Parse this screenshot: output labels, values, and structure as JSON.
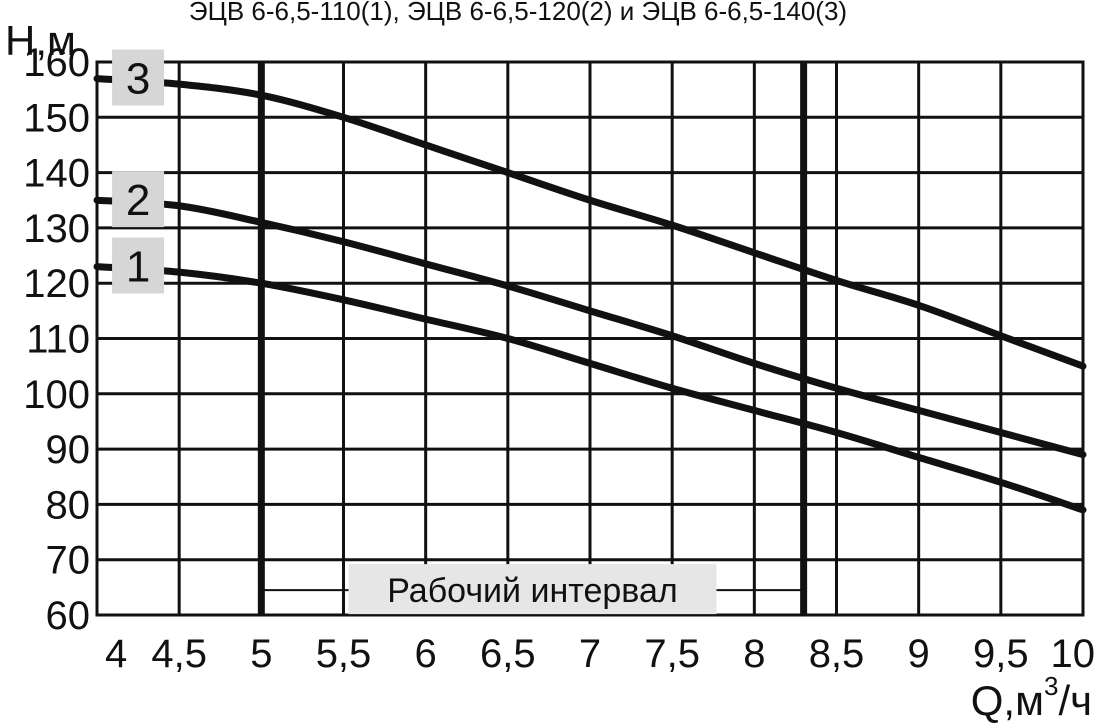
{
  "chart_data": {
    "type": "line",
    "title": "ЭЦВ 6-6,5-110(1), ЭЦВ 6-6,5-120(2) и ЭЦВ 6-6,5-140(3)",
    "xlabel_main": "Q,м",
    "xlabel_sup": "3",
    "xlabel_tail": "/ч",
    "ylabel": "Н,м",
    "xlim": [
      4,
      10
    ],
    "ylim": [
      60,
      160
    ],
    "x_ticks": [
      "4",
      "4,5",
      "5",
      "5,5",
      "6",
      "6,5",
      "7",
      "7,5",
      "8",
      "8,5",
      "9",
      "9,5",
      "10"
    ],
    "y_ticks": [
      "60",
      "70",
      "80",
      "90",
      "100",
      "110",
      "120",
      "130",
      "140",
      "150",
      "160"
    ],
    "grid": true,
    "series": [
      {
        "name": "1",
        "x": [
          4,
          4.5,
          5,
          5.5,
          6,
          6.5,
          7,
          7.5,
          8,
          8.5,
          9,
          9.5,
          10
        ],
        "y": [
          123,
          122,
          120,
          117,
          113.5,
          110,
          105.5,
          101,
          97,
          93,
          88.5,
          84,
          79
        ]
      },
      {
        "name": "2",
        "x": [
          4,
          4.5,
          5,
          5.5,
          6,
          6.5,
          7,
          7.5,
          8,
          8.5,
          9,
          9.5,
          10
        ],
        "y": [
          135,
          134,
          131,
          127.5,
          123.5,
          119.5,
          115,
          110.5,
          105.5,
          101,
          97,
          93,
          89
        ]
      },
      {
        "name": "3",
        "x": [
          4,
          4.5,
          5,
          5.5,
          6,
          6.5,
          7,
          7.5,
          8,
          8.5,
          9,
          9.5,
          10
        ],
        "y": [
          157,
          156,
          154,
          150,
          145,
          140,
          135,
          130.5,
          125.5,
          120.5,
          116,
          110.5,
          105
        ]
      }
    ],
    "working_interval": {
      "label": "Рабочий интервал",
      "x_start": 5,
      "x_end": 8.3
    }
  }
}
